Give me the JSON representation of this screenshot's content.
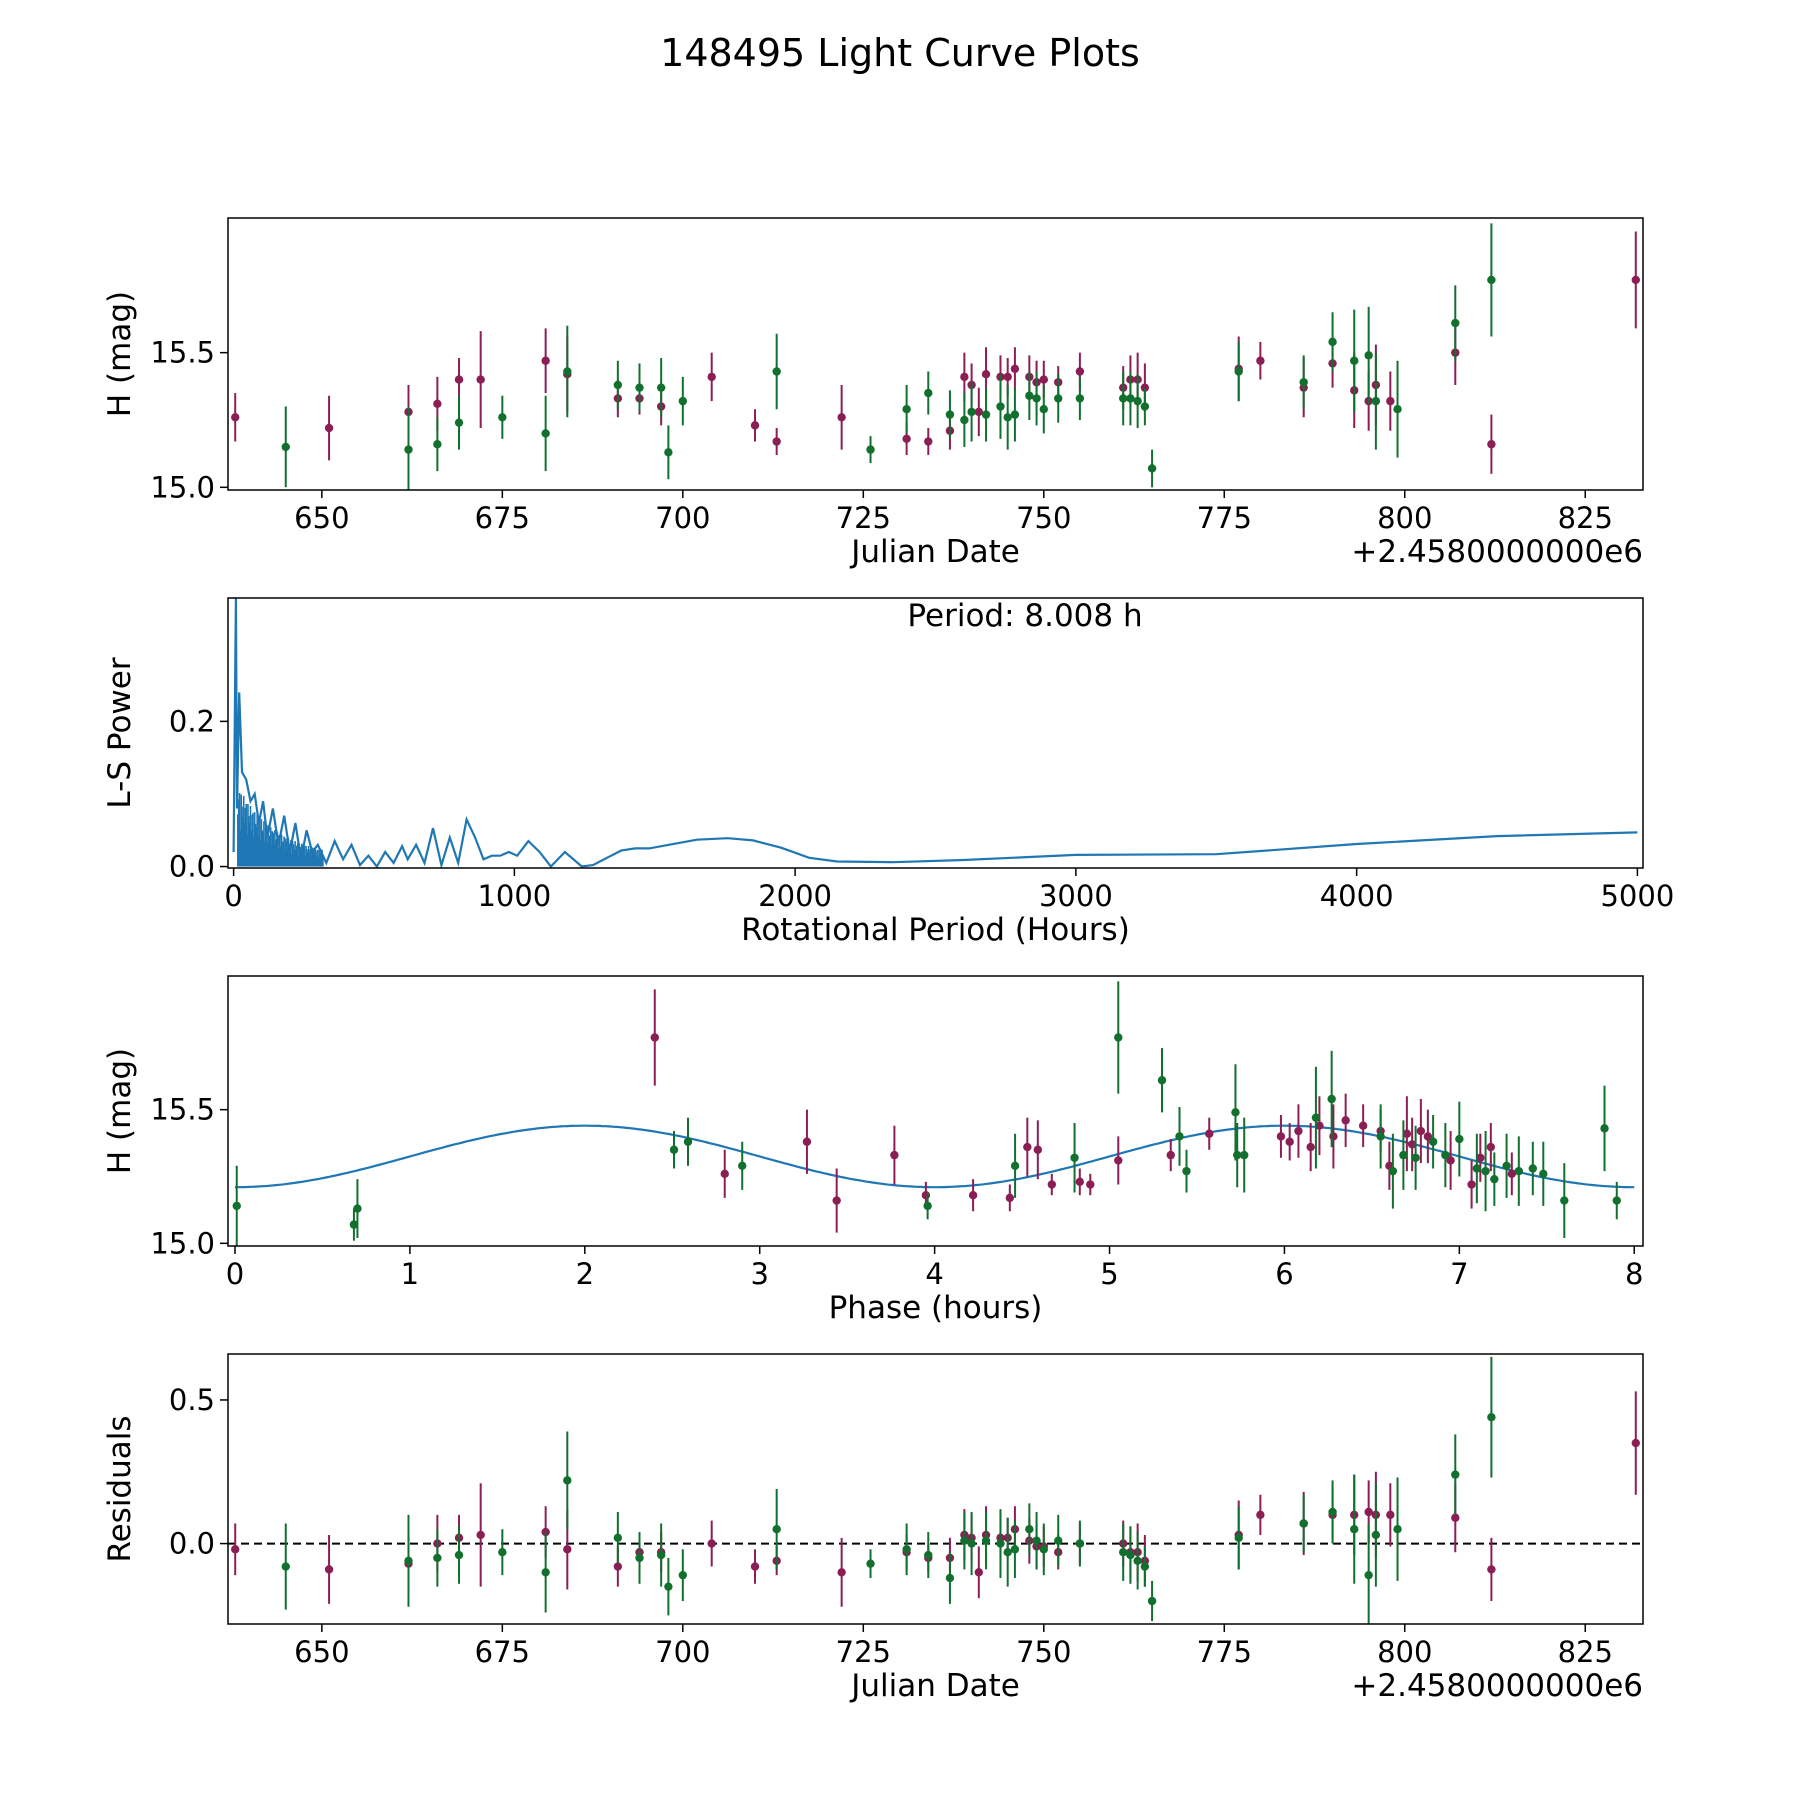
{
  "figure_title": "148495 Light Curve Plots",
  "colors": {
    "series_a": "#8B1E55",
    "series_b": "#12702F",
    "curve": "#1f77b4",
    "axis": "#000000"
  },
  "chart_data": [
    {
      "type": "scatter",
      "name": "light-curve",
      "xlabel": "Julian Date",
      "ylabel": "H (mag)",
      "offset_label": "+2.4580000000e6",
      "xlim": [
        637,
        833
      ],
      "ylim": [
        14.99,
        16.0
      ],
      "xticks": [
        "650",
        "675",
        "700",
        "725",
        "750",
        "775",
        "800",
        "825"
      ],
      "yticks": [
        "15.0",
        "15.5"
      ],
      "series": [
        {
          "name": "series_a",
          "x": [
            638,
            651,
            662,
            666,
            669,
            672,
            681,
            684,
            691,
            694,
            697,
            704,
            710,
            713,
            722,
            731,
            734,
            737,
            739,
            740,
            741,
            742,
            744,
            745,
            746,
            748,
            749,
            750,
            752,
            755,
            761,
            762,
            763,
            764,
            777,
            780,
            786,
            790,
            793,
            795,
            796,
            798,
            807,
            812,
            832
          ],
          "y": [
            15.26,
            15.22,
            15.28,
            15.31,
            15.4,
            15.4,
            15.47,
            15.42,
            15.33,
            15.33,
            15.3,
            15.41,
            15.23,
            15.17,
            15.26,
            15.18,
            15.17,
            15.21,
            15.41,
            15.38,
            15.28,
            15.42,
            15.41,
            15.41,
            15.44,
            15.41,
            15.39,
            15.4,
            15.39,
            15.43,
            15.37,
            15.4,
            15.4,
            15.37,
            15.44,
            15.47,
            15.37,
            15.46,
            15.36,
            15.32,
            15.38,
            15.32,
            15.5,
            15.16,
            15.77
          ],
          "err": [
            0.09,
            0.12,
            0.1,
            0.1,
            0.08,
            0.18,
            0.12,
            0.14,
            0.07,
            0.06,
            0.07,
            0.09,
            0.06,
            0.05,
            0.12,
            0.06,
            0.05,
            0.07,
            0.09,
            0.08,
            0.09,
            0.1,
            0.08,
            0.07,
            0.08,
            0.08,
            0.08,
            0.07,
            0.06,
            0.07,
            0.08,
            0.09,
            0.1,
            0.09,
            0.12,
            0.07,
            0.11,
            0.09,
            0.14,
            0.11,
            0.15,
            0.11,
            0.12,
            0.11,
            0.18
          ]
        },
        {
          "name": "series_b",
          "x": [
            645,
            662,
            666,
            669,
            675,
            681,
            684,
            691,
            694,
            697,
            698,
            700,
            713,
            726,
            731,
            734,
            737,
            739,
            740,
            742,
            744,
            745,
            746,
            748,
            749,
            750,
            752,
            755,
            761,
            762,
            763,
            764,
            765,
            777,
            786,
            790,
            793,
            795,
            796,
            799,
            807,
            812
          ],
          "y": [
            15.15,
            15.14,
            15.16,
            15.24,
            15.26,
            15.2,
            15.43,
            15.38,
            15.37,
            15.37,
            15.13,
            15.32,
            15.43,
            15.14,
            15.29,
            15.35,
            15.27,
            15.25,
            15.28,
            15.27,
            15.3,
            15.26,
            15.27,
            15.34,
            15.33,
            15.29,
            15.33,
            15.33,
            15.33,
            15.33,
            15.32,
            15.3,
            15.07,
            15.43,
            15.39,
            15.54,
            15.47,
            15.49,
            15.32,
            15.29,
            15.61,
            15.77
          ],
          "err": [
            0.15,
            0.16,
            0.1,
            0.1,
            0.08,
            0.14,
            0.17,
            0.09,
            0.09,
            0.11,
            0.1,
            0.09,
            0.14,
            0.05,
            0.09,
            0.08,
            0.09,
            0.1,
            0.11,
            0.1,
            0.12,
            0.12,
            0.1,
            0.09,
            0.1,
            0.09,
            0.09,
            0.08,
            0.1,
            0.1,
            0.1,
            0.07,
            0.07,
            0.11,
            0.1,
            0.11,
            0.19,
            0.18,
            0.18,
            0.18,
            0.14,
            0.21
          ]
        }
      ]
    },
    {
      "type": "line",
      "name": "periodogram",
      "xlabel": "Rotational Period (Hours)",
      "ylabel": "L-S Power",
      "annotation": "Period: 8.008 h",
      "xlim": [
        -20,
        5020
      ],
      "ylim": [
        -0.002,
        0.37
      ],
      "xticks": [
        "0",
        "1000",
        "2000",
        "3000",
        "4000",
        "5000"
      ],
      "yticks": [
        "0.0",
        "0.2"
      ],
      "series": [
        {
          "name": "power",
          "x": [
            0,
            8,
            12,
            20,
            30,
            45,
            60,
            75,
            90,
            105,
            120,
            140,
            160,
            180,
            200,
            220,
            240,
            260,
            280,
            300,
            330,
            360,
            390,
            420,
            450,
            480,
            510,
            540,
            570,
            600,
            620,
            650,
            680,
            710,
            740,
            770,
            800,
            830,
            860,
            890,
            920,
            950,
            980,
            1010,
            1050,
            1090,
            1130,
            1180,
            1240,
            1280,
            1330,
            1380,
            1430,
            1480,
            1550,
            1650,
            1760,
            1850,
            1950,
            2050,
            2150,
            2350,
            2600,
            3000,
            3500,
            4000,
            4500,
            5000
          ],
          "y": [
            0.02,
            0.37,
            0.08,
            0.24,
            0.13,
            0.12,
            0.09,
            0.1,
            0.06,
            0.09,
            0.04,
            0.08,
            0.03,
            0.07,
            0.02,
            0.06,
            0.01,
            0.05,
            0.02,
            0.03,
            0.005,
            0.035,
            0.01,
            0.03,
            0.002,
            0.015,
            0.0,
            0.02,
            0.005,
            0.028,
            0.01,
            0.03,
            0.005,
            0.053,
            0.002,
            0.04,
            0.005,
            0.065,
            0.04,
            0.01,
            0.015,
            0.015,
            0.02,
            0.015,
            0.035,
            0.02,
            0.0,
            0.02,
            0.0,
            0.002,
            0.012,
            0.022,
            0.025,
            0.025,
            0.03,
            0.037,
            0.039,
            0.036,
            0.026,
            0.012,
            0.007,
            0.006,
            0.009,
            0.016,
            0.017,
            0.031,
            0.042,
            0.047
          ]
        }
      ]
    },
    {
      "type": "scatter",
      "name": "phase-fold",
      "xlabel": "Phase (hours)",
      "ylabel": "H (mag)",
      "xlim": [
        -0.04,
        8.05
      ],
      "ylim": [
        14.99,
        16.0
      ],
      "xticks": [
        "0",
        "1",
        "2",
        "3",
        "4",
        "5",
        "6",
        "7",
        "8"
      ],
      "yticks": [
        "15.0",
        "15.5"
      ],
      "fit": {
        "mean": 15.325,
        "amplitude": 0.115,
        "period": 4.0,
        "peak_phase": 2.0
      },
      "series": [
        {
          "name": "series_a",
          "x": [
            2.4,
            2.8,
            3.27,
            3.44,
            3.77,
            3.95,
            4.22,
            4.43,
            4.53,
            4.59,
            4.67,
            4.83,
            4.89,
            5.05,
            5.35,
            5.57,
            5.98,
            6.03,
            6.08,
            6.15,
            6.2,
            6.28,
            6.35,
            6.45,
            6.55,
            6.6,
            6.7,
            6.73,
            6.78,
            6.82,
            6.95,
            7.07,
            7.12,
            7.18,
            7.3
          ],
          "y": [
            15.77,
            15.26,
            15.38,
            15.16,
            15.33,
            15.18,
            15.18,
            15.17,
            15.36,
            15.35,
            15.22,
            15.23,
            15.22,
            15.31,
            15.33,
            15.41,
            15.4,
            15.38,
            15.42,
            15.36,
            15.44,
            15.4,
            15.46,
            15.44,
            15.42,
            15.29,
            15.41,
            15.37,
            15.42,
            15.4,
            15.31,
            15.22,
            15.32,
            15.36,
            15.26
          ],
          "err": [
            0.18,
            0.09,
            0.12,
            0.12,
            0.11,
            0.05,
            0.06,
            0.05,
            0.11,
            0.11,
            0.04,
            0.05,
            0.04,
            0.09,
            0.06,
            0.06,
            0.08,
            0.07,
            0.1,
            0.09,
            0.11,
            0.12,
            0.1,
            0.08,
            0.08,
            0.09,
            0.14,
            0.1,
            0.12,
            0.1,
            0.11,
            0.09,
            0.09,
            0.09,
            0.08
          ]
        },
        {
          "name": "series_b",
          "x": [
            0.01,
            0.68,
            0.7,
            2.51,
            2.59,
            2.9,
            3.96,
            4.46,
            4.8,
            5.05,
            5.3,
            5.4,
            5.44,
            5.72,
            5.73,
            5.77,
            6.18,
            6.27,
            6.55,
            6.62,
            6.68,
            6.75,
            6.85,
            6.92,
            7.0,
            7.1,
            7.15,
            7.2,
            7.27,
            7.34,
            7.42,
            7.48,
            7.6,
            7.83,
            7.9
          ],
          "y": [
            15.14,
            15.07,
            15.13,
            15.35,
            15.38,
            15.29,
            15.14,
            15.29,
            15.32,
            15.77,
            15.61,
            15.4,
            15.27,
            15.49,
            15.33,
            15.33,
            15.47,
            15.54,
            15.4,
            15.27,
            15.33,
            15.32,
            15.38,
            15.33,
            15.39,
            15.28,
            15.27,
            15.24,
            15.29,
            15.27,
            15.28,
            15.26,
            15.16,
            15.43,
            15.16
          ],
          "err": [
            0.15,
            0.06,
            0.11,
            0.07,
            0.09,
            0.09,
            0.05,
            0.12,
            0.13,
            0.21,
            0.12,
            0.11,
            0.08,
            0.18,
            0.12,
            0.14,
            0.19,
            0.18,
            0.12,
            0.14,
            0.13,
            0.12,
            0.1,
            0.12,
            0.14,
            0.13,
            0.15,
            0.1,
            0.12,
            0.13,
            0.1,
            0.12,
            0.14,
            0.16,
            0.07
          ]
        }
      ]
    },
    {
      "type": "scatter",
      "name": "residuals",
      "xlabel": "Julian Date",
      "ylabel": "Residuals",
      "offset_label": "+2.4580000000e6",
      "xlim": [
        637,
        833
      ],
      "ylim": [
        -0.28,
        0.66
      ],
      "xticks": [
        "650",
        "675",
        "700",
        "725",
        "750",
        "775",
        "800",
        "825"
      ],
      "yticks": [
        "0.0",
        "0.5"
      ],
      "reference_line": 0.0,
      "series": [
        {
          "name": "series_a",
          "x": [
            638,
            651,
            662,
            666,
            669,
            672,
            681,
            684,
            691,
            694,
            697,
            704,
            710,
            713,
            722,
            731,
            734,
            737,
            739,
            740,
            741,
            742,
            744,
            745,
            746,
            748,
            749,
            750,
            752,
            755,
            761,
            762,
            763,
            764,
            777,
            780,
            786,
            790,
            793,
            795,
            796,
            798,
            807,
            812,
            832
          ],
          "y": [
            -0.02,
            -0.09,
            -0.07,
            0.0,
            0.02,
            0.03,
            0.04,
            -0.02,
            -0.08,
            -0.03,
            -0.03,
            0.0,
            -0.08,
            -0.06,
            -0.1,
            -0.03,
            -0.05,
            -0.05,
            0.03,
            0.02,
            -0.1,
            0.03,
            0.02,
            0.02,
            0.05,
            0.01,
            -0.01,
            -0.01,
            -0.03,
            0.0,
            0.0,
            -0.03,
            -0.03,
            -0.06,
            0.03,
            0.1,
            0.07,
            0.1,
            0.1,
            0.11,
            0.1,
            0.1,
            0.09,
            -0.09,
            0.35
          ],
          "err": [
            0.09,
            0.12,
            0.1,
            0.1,
            0.08,
            0.18,
            0.09,
            0.14,
            0.07,
            0.06,
            0.07,
            0.08,
            0.06,
            0.05,
            0.12,
            0.06,
            0.05,
            0.07,
            0.09,
            0.08,
            0.09,
            0.1,
            0.08,
            0.07,
            0.08,
            0.08,
            0.08,
            0.07,
            0.06,
            0.07,
            0.08,
            0.09,
            0.1,
            0.09,
            0.12,
            0.07,
            0.11,
            0.09,
            0.14,
            0.11,
            0.15,
            0.11,
            0.12,
            0.11,
            0.18
          ]
        },
        {
          "name": "series_b",
          "x": [
            645,
            662,
            666,
            669,
            675,
            681,
            684,
            691,
            694,
            697,
            698,
            700,
            713,
            726,
            731,
            734,
            737,
            739,
            740,
            742,
            744,
            745,
            746,
            748,
            749,
            750,
            752,
            755,
            761,
            762,
            763,
            764,
            765,
            777,
            786,
            790,
            793,
            795,
            796,
            799,
            807,
            812
          ],
          "y": [
            -0.08,
            -0.06,
            -0.05,
            -0.04,
            -0.03,
            -0.1,
            0.22,
            0.02,
            -0.05,
            -0.04,
            -0.15,
            -0.11,
            0.05,
            -0.07,
            -0.02,
            -0.04,
            -0.12,
            0.01,
            0.0,
            0.01,
            0.0,
            -0.03,
            -0.02,
            0.05,
            0.01,
            -0.02,
            0.01,
            0.0,
            -0.03,
            -0.04,
            -0.06,
            -0.08,
            -0.2,
            0.02,
            0.07,
            0.11,
            0.05,
            -0.11,
            0.03,
            0.05,
            0.24,
            0.44
          ],
          "err": [
            0.15,
            0.16,
            0.1,
            0.1,
            0.08,
            0.14,
            0.17,
            0.09,
            0.09,
            0.11,
            0.1,
            0.09,
            0.14,
            0.05,
            0.09,
            0.08,
            0.09,
            0.1,
            0.11,
            0.1,
            0.12,
            0.12,
            0.1,
            0.09,
            0.1,
            0.09,
            0.09,
            0.08,
            0.1,
            0.1,
            0.1,
            0.07,
            0.07,
            0.11,
            0.1,
            0.11,
            0.19,
            0.18,
            0.18,
            0.18,
            0.14,
            0.21
          ]
        }
      ]
    }
  ]
}
